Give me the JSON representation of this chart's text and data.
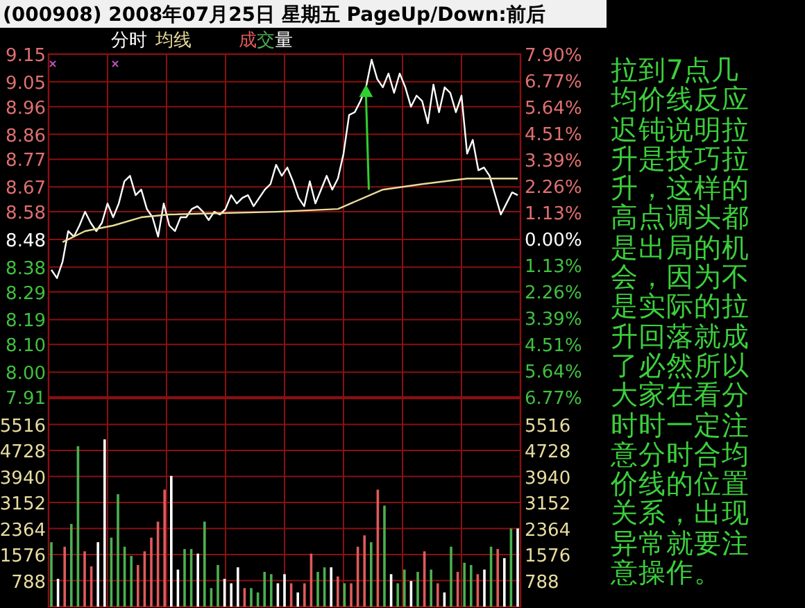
{
  "chart_data": [
    {
      "type": "line",
      "title": "(000908) 2008年07月25日 星期五 PageUp/Down:前后",
      "categories": [
        null,
        null,
        null,
        null,
        null,
        null,
        null,
        null,
        null,
        null,
        null,
        null,
        null,
        null,
        null,
        null,
        null,
        null,
        null,
        null,
        null,
        null,
        null,
        null,
        null,
        null,
        null,
        null,
        null,
        null,
        null,
        null,
        null,
        null,
        null,
        null,
        null,
        null,
        null,
        null,
        null,
        null,
        null,
        null,
        null,
        null,
        null,
        null,
        null,
        null,
        null,
        null,
        null,
        null,
        null,
        null,
        null,
        null,
        null,
        null,
        null,
        null,
        null,
        null,
        null,
        null,
        null,
        null,
        null,
        null,
        null,
        null,
        null,
        null,
        null,
        null,
        null,
        null,
        null,
        null,
        null,
        null,
        null,
        null
      ],
      "ylim": [
        7.91,
        9.15
      ],
      "yticks": [
        9.15,
        9.05,
        8.96,
        8.86,
        8.77,
        8.67,
        8.58,
        8.48,
        8.38,
        8.29,
        8.19,
        {
          "value": 8.1,
          "label": "8.10"
        },
        {
          "value": 8,
          "label": "8.00"
        },
        7.91
      ],
      "y2lim": [
        -6.77,
        7.9
      ],
      "y2ticks": [
        {
          "value": 7.9,
          "label": "7.90%"
        },
        {
          "value": 6.77,
          "label": "6.77%"
        },
        {
          "value": 5.64,
          "label": "5.64%"
        },
        {
          "value": 4.51,
          "label": "4.51%"
        },
        {
          "value": 3.39,
          "label": "3.39%"
        },
        {
          "value": 2.26,
          "label": "2.26%"
        },
        {
          "value": 1.13,
          "label": "1.13%"
        },
        {
          "value": 0,
          "label": "0.00%"
        },
        {
          "value": -1.13,
          "label": "1.13%"
        },
        {
          "value": -2.26,
          "label": "2.26%"
        },
        {
          "value": -3.39,
          "label": "3.39%"
        },
        {
          "value": -4.51,
          "label": "4.51%"
        },
        {
          "value": -5.64,
          "label": "5.64%"
        },
        {
          "value": -6.77,
          "label": "6.77%"
        }
      ],
      "grid": true,
      "tick_labels": "y",
      "series": [
        {
          "name": "分时",
          "color": "#ffffff",
          "values": [
            8.37,
            8.34,
            8.4,
            8.51,
            8.49,
            8.53,
            8.58,
            8.54,
            8.51,
            8.54,
            8.61,
            8.56,
            8.61,
            8.69,
            8.71,
            8.64,
            8.66,
            8.59,
            8.56,
            8.49,
            8.61,
            8.53,
            8.51,
            8.56,
            8.56,
            8.59,
            8.6,
            8.58,
            8.55,
            8.58,
            8.57,
            8.59,
            8.64,
            8.61,
            8.63,
            8.64,
            8.6,
            8.63,
            8.66,
            8.68,
            8.75,
            8.71,
            8.74,
            8.69,
            8.63,
            8.6,
            8.69,
            8.61,
            8.66,
            8.71,
            8.66,
            8.7,
            8.79,
            8.93,
            8.94,
            8.98,
            9.03,
            9.13,
            9.06,
            9.03,
            9.08,
            9.01,
            9.08,
            9.03,
            8.96,
            9.0,
            8.98,
            8.9,
            9.04,
            8.94,
            9.03,
            9.01,
            8.94,
            9.0,
            8.79,
            8.84,
            8.73,
            8.74,
            8.71,
            8.64,
            8.57,
            8.61,
            8.65,
            8.64
          ]
        },
        {
          "name": "均线",
          "color": "#e8dc9a",
          "values": [
            null,
            null,
            8.47,
            null,
            null,
            null,
            8.51,
            null,
            null,
            null,
            null,
            8.53,
            null,
            null,
            null,
            null,
            8.56,
            null,
            null,
            null,
            null,
            8.57,
            null,
            null,
            null,
            null,
            null,
            null,
            null,
            null,
            null,
            null,
            null,
            null,
            null,
            null,
            null,
            null,
            null,
            null,
            8.58,
            null,
            null,
            null,
            null,
            null,
            null,
            null,
            null,
            null,
            null,
            8.59,
            null,
            null,
            null,
            null,
            null,
            null,
            null,
            8.66,
            null,
            null,
            null,
            null,
            null,
            null,
            8.68,
            null,
            null,
            null,
            null,
            null,
            null,
            null,
            8.7,
            null,
            null,
            null,
            null,
            null,
            null,
            null,
            null,
            8.7
          ]
        }
      ],
      "annotations": [
        "拉到7点几均价线反应迟钝说明拉升是技巧拉升，这样的高点调头都是出局的机会，因为不是实际的拉升回落就成了必然所以大家在看分时时一定注意分时合均价线的位置关系，出现异常就要注意操作。"
      ]
    },
    {
      "type": "bar",
      "categories": [
        null,
        null,
        null,
        null,
        null,
        null,
        null,
        null,
        null,
        null,
        null,
        null,
        null,
        null,
        null,
        null,
        null,
        null,
        null,
        null,
        null,
        null,
        null,
        null,
        null,
        null,
        null,
        null,
        null,
        null,
        null,
        null,
        null,
        null,
        null,
        null,
        null,
        null,
        null,
        null,
        null,
        null,
        null,
        null,
        null,
        null,
        null,
        null,
        null,
        null,
        null,
        null,
        null,
        null,
        null,
        null,
        null,
        null,
        null,
        null,
        null,
        null,
        null,
        null,
        null,
        null,
        null,
        null,
        null,
        null,
        null
      ],
      "ylim": [
        0,
        6304
      ],
      "yticks": [
        788,
        1576,
        2364,
        3152,
        3940,
        4728,
        5516
      ],
      "y2lim": [
        0,
        6304
      ],
      "y2ticks": [
        788,
        1576,
        2364,
        3152,
        3940,
        4728,
        5516
      ],
      "grid": true,
      "tick_labels": "y",
      "series": [
        {
          "name": "成交量",
          "values": [
            1950,
            842,
            1813,
            2503,
            4856,
            1674,
            1218,
            1950,
            5063,
            2088,
            3403,
            1813,
            1536,
            1259,
            1674,
            2088,
            2573,
            3541,
            3956,
            1121,
            1743,
            1743,
            1605,
            2573,
            560,
            1259,
            842,
            705,
            1190,
            560,
            560,
            429,
            1052,
            982,
            705,
            982,
            705,
            429,
            705,
            1605,
            1052,
            1190,
            1190,
            913,
            705,
            705,
            1813,
            2158,
            1950,
            3541,
            3057,
            982,
            705,
            1121,
            774,
            1052,
            1674,
            1121,
            705,
            429,
            1813,
            1052,
            1328,
            1259,
            982,
            1121,
            1813,
            1743,
            1467,
            2365,
            2365
          ],
          "colors": [
            "#4caf50",
            "#ffffff",
            "#e05a5a",
            "#4caf50",
            "#4caf50",
            "#e05a5a",
            "#e05a5a",
            "#ffffff",
            "#ffffff",
            "#4caf50",
            "#4caf50",
            "#4caf50",
            "#4caf50",
            "#e05a5a",
            "#e05a5a",
            "#e05a5a",
            "#e05a5a",
            "#e05a5a",
            "#ffffff",
            "#ffffff",
            "#4caf50",
            "#4caf50",
            "#ffffff",
            "#4caf50",
            "#4caf50",
            "#4caf50",
            "#ffffff",
            "#ffffff",
            "#ffffff",
            "#e05a5a",
            "#4caf50",
            "#4caf50",
            "#4caf50",
            "#4caf50",
            "#ffffff",
            "#ffffff",
            "#e05a5a",
            "#ffffff",
            "#e05a5a",
            "#e05a5a",
            "#4caf50",
            "#4caf50",
            "#ffffff",
            "#e05a5a",
            "#4caf50",
            "#e05a5a",
            "#e05a5a",
            "#e05a5a",
            "#4caf50",
            "#e05a5a",
            "#4caf50",
            "#ffffff",
            "#4caf50",
            "#4caf50",
            "#ffffff",
            "#4caf50",
            "#e05a5a",
            "#4caf50",
            "#e05a5a",
            "#ffffff",
            "#4caf50",
            "#e05a5a",
            "#4caf50",
            "#4caf50",
            "#e05a5a",
            "#ffffff",
            "#4caf50",
            "#e05a5a",
            "#ffffff",
            "#4caf50",
            "#ffffff"
          ]
        }
      ]
    }
  ]
}
